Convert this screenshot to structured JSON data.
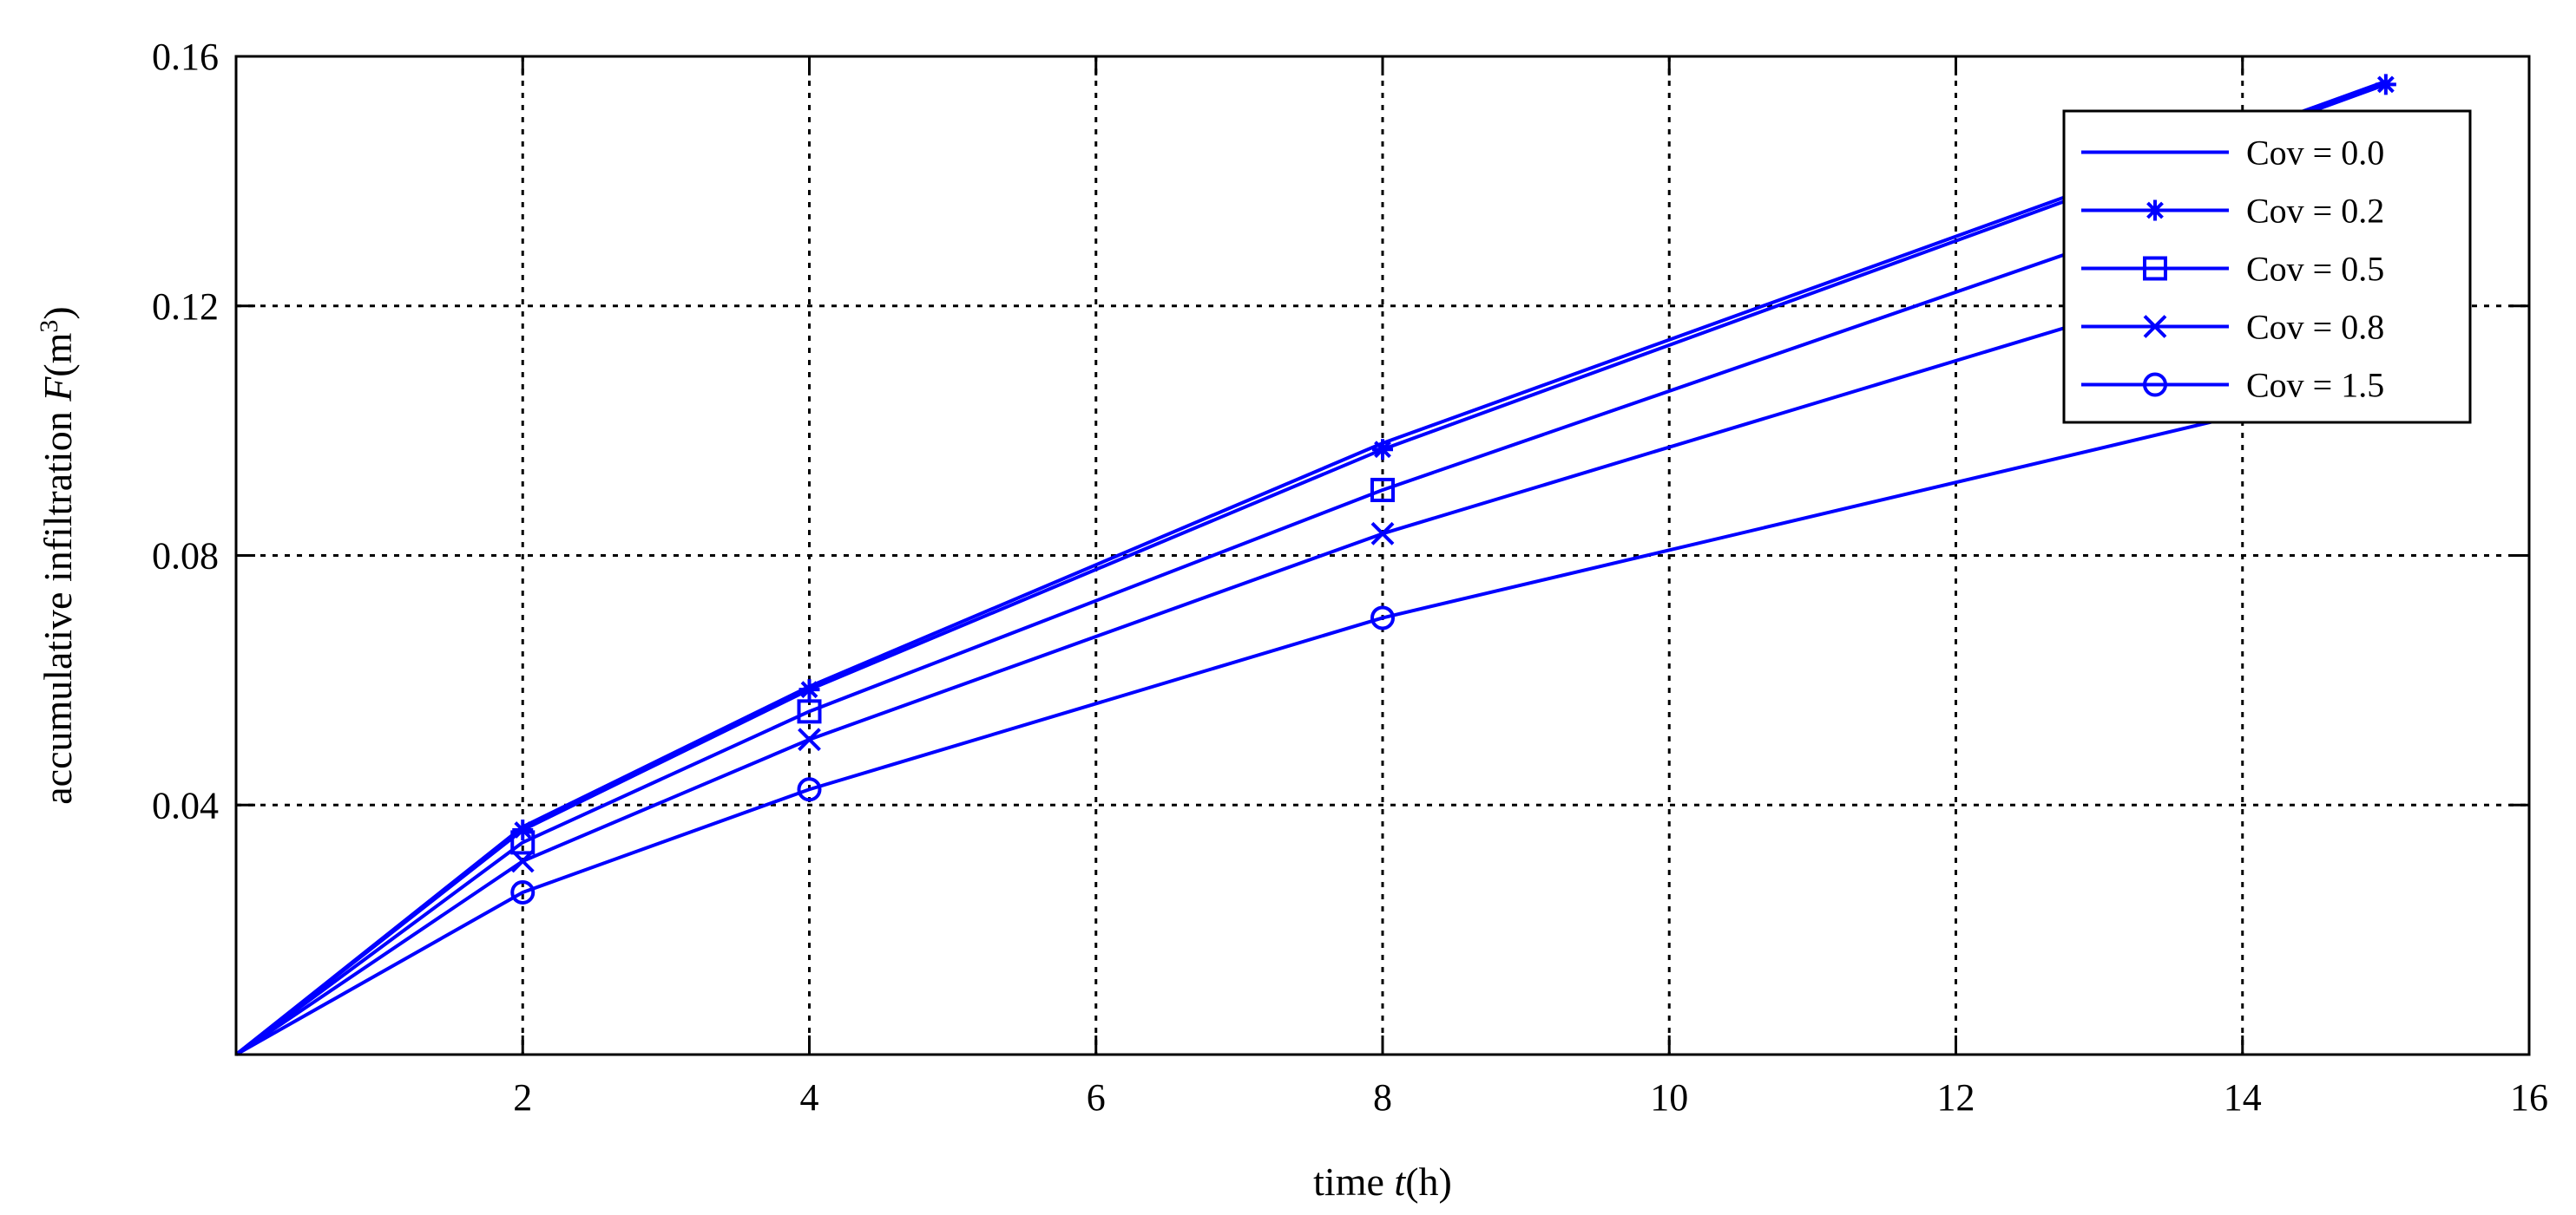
{
  "chart_data": {
    "type": "line",
    "title": "",
    "xlabel": {
      "prefix": "time ",
      "var": "t",
      "suffix": "(h)"
    },
    "ylabel": {
      "prefix": "accumulative infiltration ",
      "var": "F",
      "suffix": "(m",
      "sup": "3",
      "close": ")"
    },
    "xlim": [
      0,
      16
    ],
    "ylim": [
      0,
      0.16
    ],
    "xticks": [
      2,
      4,
      6,
      8,
      10,
      12,
      14,
      16
    ],
    "xtick_labels": [
      "2",
      "4",
      "6",
      "8",
      "10",
      "12",
      "14",
      "16"
    ],
    "yticks": [
      0.04,
      0.08,
      0.12,
      0.16
    ],
    "ytick_labels": [
      "0.04",
      "0.08",
      "0.12",
      "0.16"
    ],
    "grid": true,
    "legend_position": "top-right",
    "line_color": "#0000ff",
    "series": [
      {
        "name": "Cov = 0.0",
        "marker": "none",
        "x": [
          0,
          2,
          4,
          8,
          15
        ],
        "y": [
          0,
          0.0365,
          0.059,
          0.098,
          0.156
        ]
      },
      {
        "name": "Cov = 0.2",
        "marker": "asterisk",
        "x": [
          0,
          2,
          4,
          8,
          15
        ],
        "y": [
          0,
          0.036,
          0.0585,
          0.097,
          0.1555
        ]
      },
      {
        "name": "Cov = 0.5",
        "marker": "square",
        "x": [
          0,
          2,
          4,
          8,
          15
        ],
        "y": [
          0,
          0.034,
          0.055,
          0.0905,
          0.146
        ]
      },
      {
        "name": "Cov = 0.8",
        "marker": "x",
        "x": [
          0,
          2,
          4,
          8,
          15
        ],
        "y": [
          0,
          0.031,
          0.0505,
          0.0835,
          0.132
        ]
      },
      {
        "name": "Cov = 1.5",
        "marker": "circle",
        "x": [
          0,
          2,
          4,
          8,
          15
        ],
        "y": [
          0,
          0.026,
          0.0425,
          0.07,
          0.108
        ]
      }
    ]
  }
}
